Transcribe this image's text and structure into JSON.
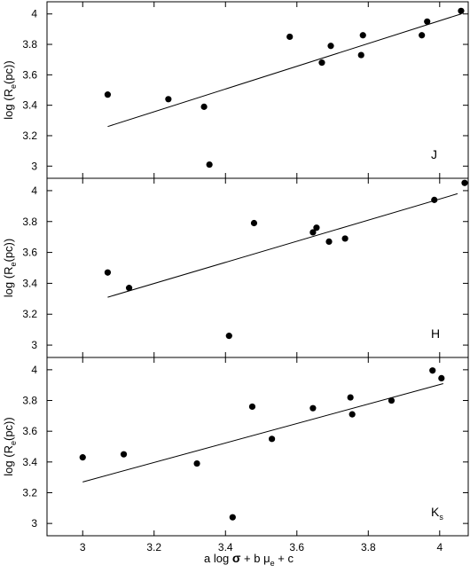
{
  "chart_data": [
    {
      "type": "scatter",
      "panel": "J",
      "band_label": "J",
      "ylabel": "log (R_e(pc))",
      "xlim": [
        2.9,
        4.08
      ],
      "ylim": [
        2.92,
        4.08
      ],
      "xticks": [
        3,
        3.2,
        3.4,
        3.6,
        3.8,
        4
      ],
      "xtick_labels": [
        "",
        "",
        "",
        "",
        "",
        ""
      ],
      "yticks": [
        3,
        3.2,
        3.4,
        3.6,
        3.8,
        4
      ],
      "ytick_labels": [
        "3",
        "3.2",
        "3.4",
        "3.6",
        "3.8",
        "4"
      ],
      "points": [
        {
          "x": 3.07,
          "y": 3.47
        },
        {
          "x": 3.24,
          "y": 3.44
        },
        {
          "x": 3.34,
          "y": 3.39
        },
        {
          "x": 3.355,
          "y": 3.01
        },
        {
          "x": 3.58,
          "y": 3.85
        },
        {
          "x": 3.67,
          "y": 3.68
        },
        {
          "x": 3.695,
          "y": 3.79
        },
        {
          "x": 3.78,
          "y": 3.73
        },
        {
          "x": 3.785,
          "y": 3.86
        },
        {
          "x": 3.95,
          "y": 3.86
        },
        {
          "x": 3.965,
          "y": 3.95
        },
        {
          "x": 4.06,
          "y": 4.02
        }
      ],
      "fit_line": {
        "x": [
          3.07,
          4.06
        ],
        "y": [
          3.26,
          4.0
        ]
      }
    },
    {
      "type": "scatter",
      "panel": "H",
      "band_label": "H",
      "ylabel": "log (R_e(pc))",
      "xlim": [
        2.9,
        4.08
      ],
      "ylim": [
        2.92,
        4.08
      ],
      "xticks": [
        3,
        3.2,
        3.4,
        3.6,
        3.8,
        4
      ],
      "xtick_labels": [
        "",
        "",
        "",
        "",
        "",
        ""
      ],
      "yticks": [
        3,
        3.2,
        3.4,
        3.6,
        3.8,
        4
      ],
      "ytick_labels": [
        "3",
        "3.2",
        "3.4",
        "3.6",
        "3.8",
        "4"
      ],
      "points": [
        {
          "x": 3.07,
          "y": 3.47
        },
        {
          "x": 3.13,
          "y": 3.37
        },
        {
          "x": 3.41,
          "y": 3.06
        },
        {
          "x": 3.48,
          "y": 3.79
        },
        {
          "x": 3.645,
          "y": 3.73
        },
        {
          "x": 3.655,
          "y": 3.76
        },
        {
          "x": 3.69,
          "y": 3.67
        },
        {
          "x": 3.735,
          "y": 3.69
        },
        {
          "x": 3.985,
          "y": 3.94
        },
        {
          "x": 4.07,
          "y": 4.05
        }
      ],
      "fit_line": {
        "x": [
          3.07,
          4.05
        ],
        "y": [
          3.31,
          3.98
        ]
      }
    },
    {
      "type": "scatter",
      "panel": "Ks",
      "band_label": "K",
      "band_label_sub": "s",
      "ylabel": "log (R_e(pc))",
      "xlabel": "a log σ + b μ_e + c",
      "xlim": [
        2.9,
        4.08
      ],
      "ylim": [
        2.92,
        4.08
      ],
      "xticks": [
        3,
        3.2,
        3.4,
        3.6,
        3.8,
        4
      ],
      "xtick_labels": [
        "3",
        "3.2",
        "3.4",
        "3.6",
        "3.8",
        "4"
      ],
      "yticks": [
        3,
        3.2,
        3.4,
        3.6,
        3.8,
        4
      ],
      "ytick_labels": [
        "3",
        "3.2",
        "3.4",
        "3.6",
        "3.8",
        "4"
      ],
      "points": [
        {
          "x": 3.0,
          "y": 3.43
        },
        {
          "x": 3.115,
          "y": 3.45
        },
        {
          "x": 3.32,
          "y": 3.39
        },
        {
          "x": 3.42,
          "y": 3.04
        },
        {
          "x": 3.475,
          "y": 3.76
        },
        {
          "x": 3.53,
          "y": 3.55
        },
        {
          "x": 3.645,
          "y": 3.75
        },
        {
          "x": 3.75,
          "y": 3.82
        },
        {
          "x": 3.755,
          "y": 3.71
        },
        {
          "x": 3.865,
          "y": 3.8
        },
        {
          "x": 3.98,
          "y": 3.995
        },
        {
          "x": 4.005,
          "y": 3.945
        }
      ],
      "fit_line": {
        "x": [
          3.0,
          4.01
        ],
        "y": [
          3.27,
          3.91
        ]
      }
    }
  ]
}
